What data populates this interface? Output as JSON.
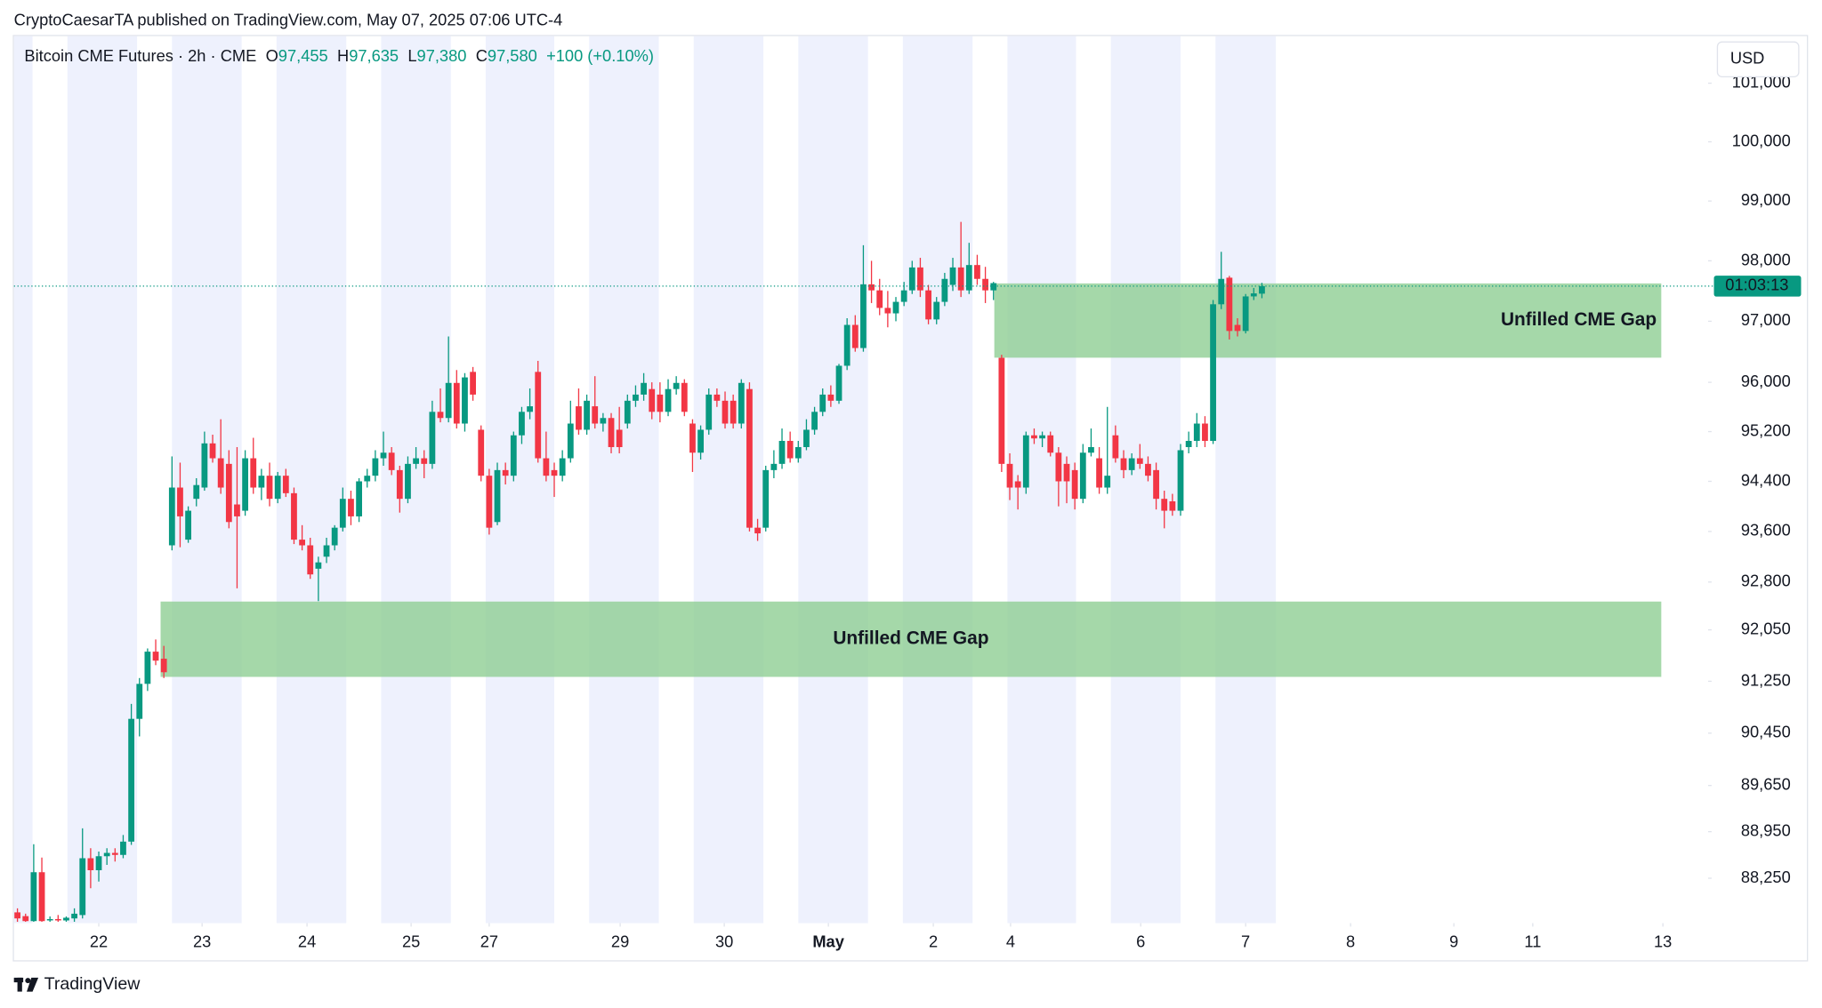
{
  "published": "CryptoCaesarTA published on TradingView.com, May 07, 2025 07:06 UTC-4",
  "footer": "TradingView",
  "chart_data": {
    "type": "candlestick",
    "symbol": "Bitcoin CME Futures · 2h · CME",
    "header_ohlc": [
      {
        "key": "O",
        "label": "97,455"
      },
      {
        "key": "H",
        "label": "97,635"
      },
      {
        "key": "L",
        "label": "97,380"
      },
      {
        "key": "C",
        "label": "97,580"
      }
    ],
    "change": "+100 (+0.10%)",
    "currency": "USD",
    "up_color": "#089981",
    "down_color": "#f23645",
    "zone_color": "#8fce94",
    "session_color": "#eef1fd",
    "log": true,
    "grid": false,
    "ylim": [
      87580,
      101810
    ],
    "yticks": [
      {
        "value": 101000,
        "label": "101,000"
      },
      {
        "value": 100000,
        "label": "100,000"
      },
      {
        "value": 99000,
        "label": "99,000"
      },
      {
        "value": 98000,
        "label": "98,000"
      },
      {
        "value": 97000,
        "label": "97,000"
      },
      {
        "value": 96000,
        "label": "96,000"
      },
      {
        "value": 95200,
        "label": "95,200"
      },
      {
        "value": 94400,
        "label": "94,400"
      },
      {
        "value": 93600,
        "label": "93,600"
      },
      {
        "value": 92800,
        "label": "92,800"
      },
      {
        "value": 92050,
        "label": "92,050"
      },
      {
        "value": 91250,
        "label": "91,250"
      },
      {
        "value": 90450,
        "label": "90,450"
      },
      {
        "value": 89650,
        "label": "89,650"
      },
      {
        "value": 88950,
        "label": "88,950"
      },
      {
        "value": 88250,
        "label": "88,250"
      }
    ],
    "xlim": [
      -0.43,
      207.86
    ],
    "xticks": [
      {
        "value": 10,
        "label": "22"
      },
      {
        "value": 22.7,
        "label": "23"
      },
      {
        "value": 35.6,
        "label": "24"
      },
      {
        "value": 48.4,
        "label": "25"
      },
      {
        "value": 58,
        "label": "27"
      },
      {
        "value": 74.1,
        "label": "29"
      },
      {
        "value": 86.9,
        "label": "30"
      },
      {
        "value": 99.7,
        "label": "May"
      },
      {
        "value": 112.6,
        "label": "2"
      },
      {
        "value": 122.1,
        "label": "4"
      },
      {
        "value": 138.1,
        "label": "6"
      },
      {
        "value": 151,
        "label": "7"
      },
      {
        "value": 163.9,
        "label": "8"
      },
      {
        "value": 176.6,
        "label": "9"
      },
      {
        "value": 186.3,
        "label": "11"
      },
      {
        "value": 202.3,
        "label": "13"
      }
    ],
    "last_price": 97580,
    "countdown": "01:03:13",
    "zones": [
      {
        "label": "Unfilled CME Gap",
        "top": 97625,
        "bottom": 96402,
        "x0": 120.1,
        "x1": 202.1
      },
      {
        "label": "Unfilled CME Gap",
        "top": 92493,
        "bottom": 91318,
        "x0": 17.6,
        "x1": 202.1
      }
    ],
    "candles": [
      {
        "open": 87740,
        "high": 87800,
        "low": 87600,
        "close": 87650
      },
      {
        "open": 87684,
        "high": 87720,
        "low": 87600,
        "close": 87610
      },
      {
        "open": 87610,
        "high": 88760,
        "low": 87600,
        "close": 88340
      },
      {
        "open": 88340,
        "high": 88560,
        "low": 87600,
        "close": 87610
      },
      {
        "open": 87620,
        "high": 87680,
        "low": 87600,
        "close": 87640
      },
      {
        "open": 87640,
        "high": 87700,
        "low": 87600,
        "close": 87620
      },
      {
        "open": 87620,
        "high": 87680,
        "low": 87600,
        "close": 87660
      },
      {
        "open": 87650,
        "high": 87800,
        "low": 87600,
        "close": 87720
      },
      {
        "open": 87700,
        "high": 89000,
        "low": 87650,
        "close": 88550
      },
      {
        "open": 88550,
        "high": 88700,
        "low": 88100,
        "close": 88370
      },
      {
        "open": 88370,
        "high": 88650,
        "low": 88200,
        "close": 88580
      },
      {
        "open": 88580,
        "high": 88700,
        "low": 88450,
        "close": 88630
      },
      {
        "open": 88630,
        "high": 88700,
        "low": 88500,
        "close": 88600
      },
      {
        "open": 88600,
        "high": 88900,
        "low": 88550,
        "close": 88800
      },
      {
        "open": 88800,
        "high": 90900,
        "low": 88750,
        "close": 90670
      },
      {
        "open": 90670,
        "high": 91300,
        "low": 90400,
        "close": 91210
      },
      {
        "open": 91210,
        "high": 91760,
        "low": 91100,
        "close": 91710
      },
      {
        "open": 91710,
        "high": 91900,
        "low": 91500,
        "close": 91570
      },
      {
        "open": 91600,
        "high": 91800,
        "low": 91300,
        "close": 91390
      },
      {
        "open": 93380,
        "high": 94800,
        "low": 93300,
        "close": 94300
      },
      {
        "open": 94300,
        "high": 94700,
        "low": 93350,
        "close": 93840
      },
      {
        "open": 93470,
        "high": 94000,
        "low": 93420,
        "close": 93930
      },
      {
        "open": 94120,
        "high": 94450,
        "low": 94000,
        "close": 94340
      },
      {
        "open": 94300,
        "high": 95200,
        "low": 94250,
        "close": 95010
      },
      {
        "open": 95010,
        "high": 95150,
        "low": 94700,
        "close": 94770
      },
      {
        "open": 94770,
        "high": 95400,
        "low": 94200,
        "close": 94300
      },
      {
        "open": 94680,
        "high": 94900,
        "low": 93650,
        "close": 93750
      },
      {
        "open": 94030,
        "high": 94950,
        "low": 92700,
        "close": 93840
      },
      {
        "open": 93930,
        "high": 94900,
        "low": 93850,
        "close": 94770
      },
      {
        "open": 94770,
        "high": 95100,
        "low": 94200,
        "close": 94300
      },
      {
        "open": 94300,
        "high": 94600,
        "low": 94100,
        "close": 94490
      },
      {
        "open": 94490,
        "high": 94700,
        "low": 94000,
        "close": 94120
      },
      {
        "open": 94120,
        "high": 94550,
        "low": 94050,
        "close": 94490
      },
      {
        "open": 94490,
        "high": 94600,
        "low": 94150,
        "close": 94210
      },
      {
        "open": 94210,
        "high": 94300,
        "low": 93400,
        "close": 93470
      },
      {
        "open": 93470,
        "high": 93700,
        "low": 93300,
        "close": 93380
      },
      {
        "open": 93380,
        "high": 93500,
        "low": 92850,
        "close": 92920
      },
      {
        "open": 93010,
        "high": 93200,
        "low": 92500,
        "close": 93110
      },
      {
        "open": 93200,
        "high": 93500,
        "low": 93100,
        "close": 93380
      },
      {
        "open": 93380,
        "high": 93700,
        "low": 93300,
        "close": 93660
      },
      {
        "open": 93660,
        "high": 94300,
        "low": 93600,
        "close": 94120
      },
      {
        "open": 94120,
        "high": 94250,
        "low": 93700,
        "close": 93840
      },
      {
        "open": 93840,
        "high": 94450,
        "low": 93750,
        "close": 94400
      },
      {
        "open": 94400,
        "high": 94600,
        "low": 94300,
        "close": 94490
      },
      {
        "open": 94490,
        "high": 94900,
        "low": 94400,
        "close": 94770
      },
      {
        "open": 94770,
        "high": 95200,
        "low": 94650,
        "close": 94860
      },
      {
        "open": 94860,
        "high": 94950,
        "low": 94500,
        "close": 94580
      },
      {
        "open": 94580,
        "high": 94650,
        "low": 93900,
        "close": 94120
      },
      {
        "open": 94120,
        "high": 94800,
        "low": 94050,
        "close": 94680
      },
      {
        "open": 94680,
        "high": 94950,
        "low": 94600,
        "close": 94770
      },
      {
        "open": 94770,
        "high": 94900,
        "low": 94450,
        "close": 94680
      },
      {
        "open": 94680,
        "high": 95700,
        "low": 94600,
        "close": 95520
      },
      {
        "open": 95520,
        "high": 95900,
        "low": 95350,
        "close": 95420
      },
      {
        "open": 95420,
        "high": 96750,
        "low": 95350,
        "close": 95990
      },
      {
        "open": 95990,
        "high": 96200,
        "low": 95250,
        "close": 95330
      },
      {
        "open": 95330,
        "high": 96150,
        "low": 95200,
        "close": 96080
      },
      {
        "open": 96170,
        "high": 96250,
        "low": 95700,
        "close": 95800
      },
      {
        "open": 95230,
        "high": 95300,
        "low": 94400,
        "close": 94490
      },
      {
        "open": 94490,
        "high": 94600,
        "low": 93550,
        "close": 93660
      },
      {
        "open": 93750,
        "high": 94700,
        "low": 93700,
        "close": 94580
      },
      {
        "open": 94580,
        "high": 94700,
        "low": 94350,
        "close": 94490
      },
      {
        "open": 94490,
        "high": 95200,
        "low": 94400,
        "close": 95140
      },
      {
        "open": 95140,
        "high": 95600,
        "low": 95000,
        "close": 95520
      },
      {
        "open": 95520,
        "high": 95900,
        "low": 95400,
        "close": 95610
      },
      {
        "open": 96170,
        "high": 96350,
        "low": 94700,
        "close": 94770
      },
      {
        "open": 94770,
        "high": 95200,
        "low": 94400,
        "close": 94490
      },
      {
        "open": 94580,
        "high": 94700,
        "low": 94150,
        "close": 94490
      },
      {
        "open": 94490,
        "high": 94900,
        "low": 94400,
        "close": 94770
      },
      {
        "open": 94770,
        "high": 95700,
        "low": 94700,
        "close": 95330
      },
      {
        "open": 95610,
        "high": 95900,
        "low": 95150,
        "close": 95230
      },
      {
        "open": 95230,
        "high": 95800,
        "low": 95150,
        "close": 95700
      },
      {
        "open": 95610,
        "high": 96100,
        "low": 95250,
        "close": 95330
      },
      {
        "open": 95330,
        "high": 95500,
        "low": 95200,
        "close": 95420
      },
      {
        "open": 95420,
        "high": 95500,
        "low": 94850,
        "close": 94950
      },
      {
        "open": 95230,
        "high": 95600,
        "low": 94850,
        "close": 94950
      },
      {
        "open": 95330,
        "high": 95800,
        "low": 95250,
        "close": 95700
      },
      {
        "open": 95700,
        "high": 95950,
        "low": 95600,
        "close": 95800
      },
      {
        "open": 95800,
        "high": 96150,
        "low": 95700,
        "close": 95990
      },
      {
        "open": 95890,
        "high": 96000,
        "low": 95400,
        "close": 95520
      },
      {
        "open": 95800,
        "high": 96000,
        "low": 95350,
        "close": 95520
      },
      {
        "open": 95520,
        "high": 96050,
        "low": 95450,
        "close": 95890
      },
      {
        "open": 95890,
        "high": 96100,
        "low": 95800,
        "close": 95990
      },
      {
        "open": 95990,
        "high": 96050,
        "low": 95450,
        "close": 95520
      },
      {
        "open": 95330,
        "high": 95400,
        "low": 94550,
        "close": 94860
      },
      {
        "open": 94860,
        "high": 95300,
        "low": 94750,
        "close": 95230
      },
      {
        "open": 95230,
        "high": 95900,
        "low": 95150,
        "close": 95800
      },
      {
        "open": 95800,
        "high": 95900,
        "low": 95600,
        "close": 95700
      },
      {
        "open": 95700,
        "high": 95850,
        "low": 95250,
        "close": 95330
      },
      {
        "open": 95700,
        "high": 95800,
        "low": 95250,
        "close": 95330
      },
      {
        "open": 95330,
        "high": 96050,
        "low": 95250,
        "close": 95990
      },
      {
        "open": 95890,
        "high": 96000,
        "low": 93600,
        "close": 93660
      },
      {
        "open": 93660,
        "high": 93800,
        "low": 93450,
        "close": 93570
      },
      {
        "open": 93660,
        "high": 94650,
        "low": 93600,
        "close": 94580
      },
      {
        "open": 94580,
        "high": 94900,
        "low": 94450,
        "close": 94680
      },
      {
        "open": 94680,
        "high": 95250,
        "low": 94600,
        "close": 95050
      },
      {
        "open": 95050,
        "high": 95200,
        "low": 94700,
        "close": 94770
      },
      {
        "open": 94770,
        "high": 95050,
        "low": 94700,
        "close": 94950
      },
      {
        "open": 94950,
        "high": 95400,
        "low": 94900,
        "close": 95230
      },
      {
        "open": 95230,
        "high": 95600,
        "low": 95150,
        "close": 95520
      },
      {
        "open": 95520,
        "high": 95900,
        "low": 95450,
        "close": 95800
      },
      {
        "open": 95800,
        "high": 95950,
        "low": 95600,
        "close": 95700
      },
      {
        "open": 95700,
        "high": 96300,
        "low": 95650,
        "close": 96270
      },
      {
        "open": 96270,
        "high": 97050,
        "low": 96200,
        "close": 96940
      },
      {
        "open": 96940,
        "high": 97100,
        "low": 96500,
        "close": 96560
      },
      {
        "open": 96560,
        "high": 98260,
        "low": 96500,
        "close": 97610
      },
      {
        "open": 97610,
        "high": 98000,
        "low": 97300,
        "close": 97510
      },
      {
        "open": 97510,
        "high": 97700,
        "low": 97100,
        "close": 97220
      },
      {
        "open": 97220,
        "high": 97500,
        "low": 96900,
        "close": 97130
      },
      {
        "open": 97130,
        "high": 97400,
        "low": 97000,
        "close": 97320
      },
      {
        "open": 97320,
        "high": 97650,
        "low": 97250,
        "close": 97510
      },
      {
        "open": 97510,
        "high": 98000,
        "low": 97450,
        "close": 97890
      },
      {
        "open": 97890,
        "high": 98050,
        "low": 97400,
        "close": 97510
      },
      {
        "open": 97510,
        "high": 97600,
        "low": 96950,
        "close": 97030
      },
      {
        "open": 97030,
        "high": 97400,
        "low": 96950,
        "close": 97320
      },
      {
        "open": 97320,
        "high": 97800,
        "low": 97250,
        "close": 97700
      },
      {
        "open": 97600,
        "high": 98050,
        "low": 97500,
        "close": 97890
      },
      {
        "open": 97890,
        "high": 98650,
        "low": 97400,
        "close": 97510
      },
      {
        "open": 97510,
        "high": 98300,
        "low": 97450,
        "close": 97930
      },
      {
        "open": 97930,
        "high": 98100,
        "low": 97600,
        "close": 97700
      },
      {
        "open": 97700,
        "high": 97900,
        "low": 97300,
        "close": 97510
      },
      {
        "open": 97510,
        "high": 97650,
        "low": 97350,
        "close": 97630
      },
      {
        "open": 96400,
        "high": 96450,
        "low": 94550,
        "close": 94680
      },
      {
        "open": 94680,
        "high": 94850,
        "low": 94100,
        "close": 94300
      },
      {
        "open": 94400,
        "high": 94500,
        "low": 93950,
        "close": 94300
      },
      {
        "open": 94300,
        "high": 95200,
        "low": 94200,
        "close": 95140
      },
      {
        "open": 95140,
        "high": 95250,
        "low": 95000,
        "close": 95090
      },
      {
        "open": 95090,
        "high": 95200,
        "low": 94950,
        "close": 95140
      },
      {
        "open": 95140,
        "high": 95200,
        "low": 94800,
        "close": 94860
      },
      {
        "open": 94860,
        "high": 94950,
        "low": 94000,
        "close": 94400
      },
      {
        "open": 94680,
        "high": 94800,
        "low": 94050,
        "close": 94400
      },
      {
        "open": 94580,
        "high": 94700,
        "low": 93950,
        "close": 94120
      },
      {
        "open": 94120,
        "high": 95000,
        "low": 94050,
        "close": 94860
      },
      {
        "open": 94860,
        "high": 95250,
        "low": 94800,
        "close": 94950
      },
      {
        "open": 94770,
        "high": 94950,
        "low": 94200,
        "close": 94300
      },
      {
        "open": 94300,
        "high": 95600,
        "low": 94200,
        "close": 94490
      },
      {
        "open": 95140,
        "high": 95300,
        "low": 94700,
        "close": 94770
      },
      {
        "open": 94770,
        "high": 94900,
        "low": 94450,
        "close": 94580
      },
      {
        "open": 94580,
        "high": 94850,
        "low": 94500,
        "close": 94770
      },
      {
        "open": 94770,
        "high": 95000,
        "low": 94600,
        "close": 94680
      },
      {
        "open": 94680,
        "high": 94800,
        "low": 94400,
        "close": 94490
      },
      {
        "open": 94580,
        "high": 94700,
        "low": 93950,
        "close": 94120
      },
      {
        "open": 94120,
        "high": 94250,
        "low": 93650,
        "close": 93930
      },
      {
        "open": 94080,
        "high": 94200,
        "low": 93850,
        "close": 93930
      },
      {
        "open": 93930,
        "high": 95000,
        "low": 93850,
        "close": 94900
      },
      {
        "open": 94950,
        "high": 95200,
        "low": 94850,
        "close": 95050
      },
      {
        "open": 95050,
        "high": 95500,
        "low": 94950,
        "close": 95330
      },
      {
        "open": 95330,
        "high": 95450,
        "low": 94950,
        "close": 95050
      },
      {
        "open": 95050,
        "high": 97350,
        "low": 95000,
        "close": 97280
      },
      {
        "open": 97280,
        "high": 98150,
        "low": 97200,
        "close": 97700
      },
      {
        "open": 97720,
        "high": 97750,
        "low": 96700,
        "close": 96840
      },
      {
        "open": 96940,
        "high": 97050,
        "low": 96750,
        "close": 96840
      },
      {
        "open": 96840,
        "high": 97450,
        "low": 96800,
        "close": 97410
      },
      {
        "open": 97410,
        "high": 97550,
        "low": 97350,
        "close": 97460
      },
      {
        "open": 97455,
        "high": 97635,
        "low": 97380,
        "close": 97580
      }
    ]
  }
}
